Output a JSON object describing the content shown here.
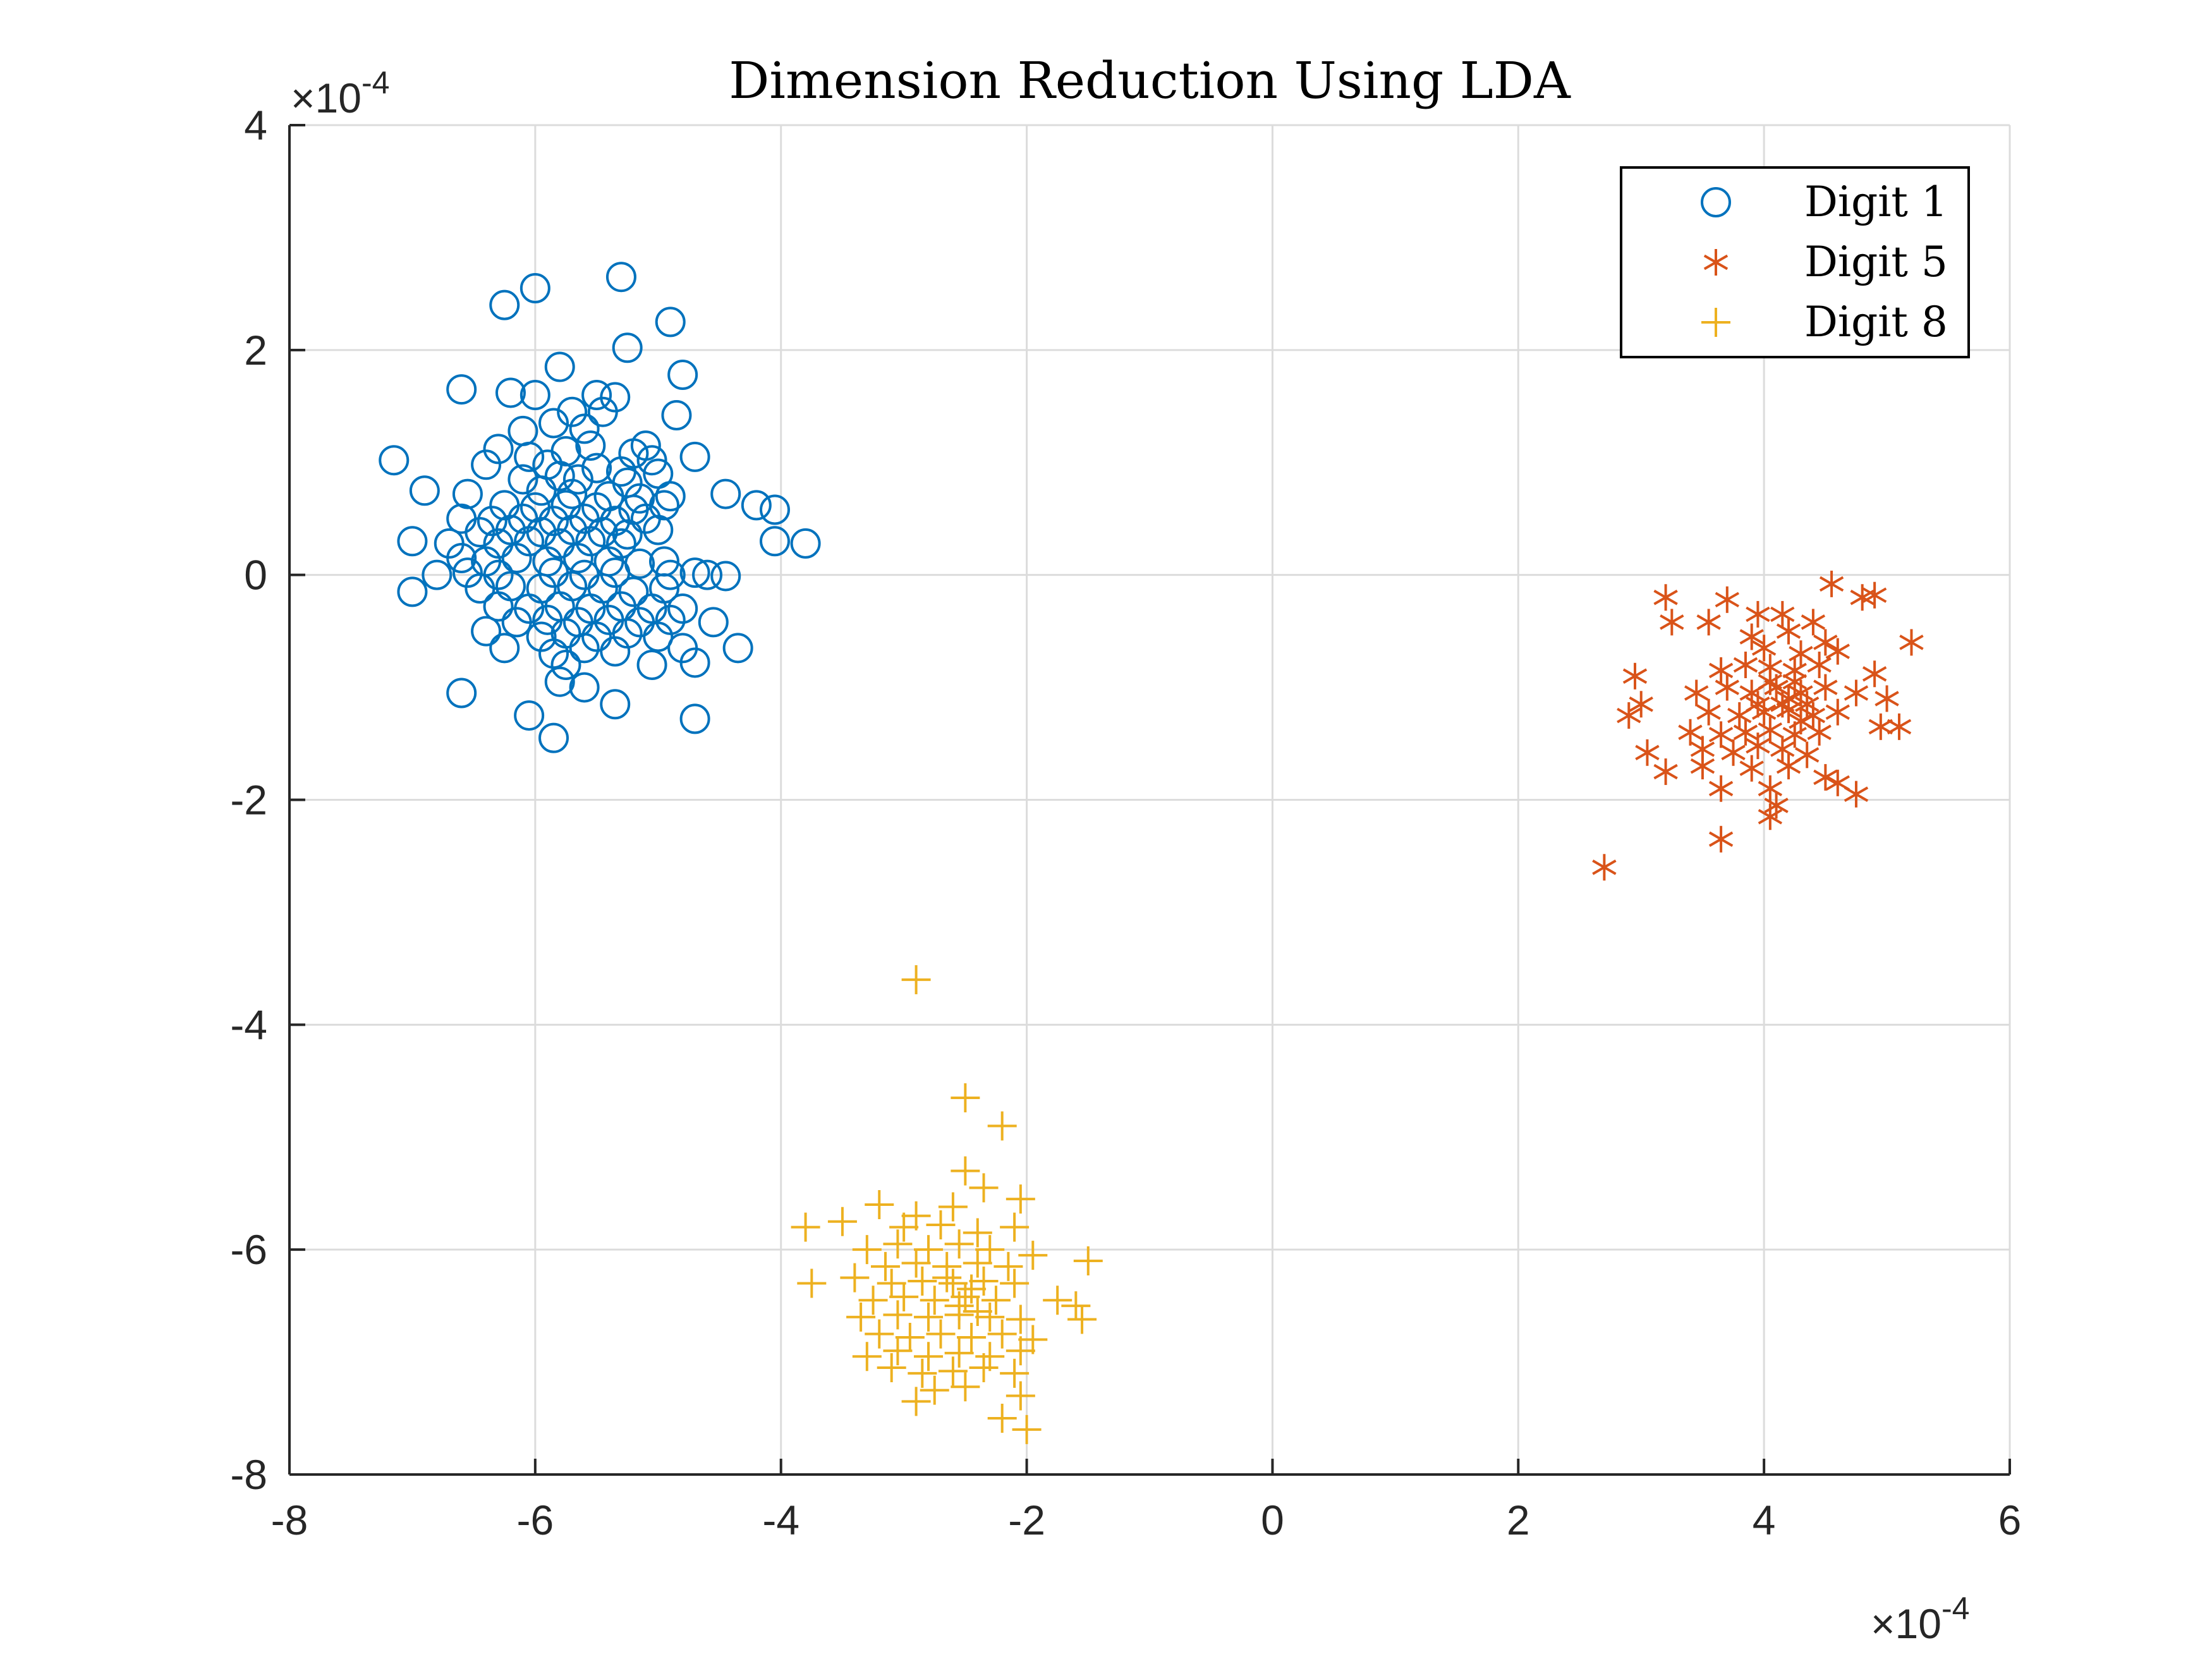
{
  "chart_data": {
    "type": "scatter",
    "title": "Dimension Reduction Using LDA",
    "xlabel": "",
    "ylabel": "",
    "x_exponent_label": "×10",
    "x_exponent_power": "-4",
    "y_exponent_label": "×10",
    "y_exponent_power": "-4",
    "xlim": [
      -8,
      6
    ],
    "ylim": [
      -8,
      4
    ],
    "x_ticks": [
      "-8",
      "-6",
      "-4",
      "-2",
      "0",
      "2",
      "4",
      "6"
    ],
    "y_ticks": [
      "4",
      "2",
      "0",
      "-2",
      "-4",
      "-6",
      "-8"
    ],
    "grid": true,
    "legend_position": "top-right",
    "series": [
      {
        "name": "Digit 1",
        "marker": "circle",
        "color": "#0072BD",
        "points": [
          [
            -6.25,
            2.4
          ],
          [
            -6.0,
            2.55
          ],
          [
            -5.3,
            2.65
          ],
          [
            -4.9,
            2.25
          ],
          [
            -5.25,
            2.02
          ],
          [
            -5.8,
            1.85
          ],
          [
            -4.8,
            1.78
          ],
          [
            -6.6,
            1.65
          ],
          [
            -6.2,
            1.62
          ],
          [
            -6.0,
            1.6
          ],
          [
            -5.5,
            1.6
          ],
          [
            -5.35,
            1.58
          ],
          [
            -5.45,
            1.45
          ],
          [
            -4.85,
            1.42
          ],
          [
            -5.7,
            1.45
          ],
          [
            -5.85,
            1.35
          ],
          [
            -6.1,
            1.28
          ],
          [
            -5.6,
            1.3
          ],
          [
            -5.1,
            1.15
          ],
          [
            -6.3,
            1.12
          ],
          [
            -7.15,
            1.02
          ],
          [
            -6.05,
            1.05
          ],
          [
            -5.75,
            1.1
          ],
          [
            -5.55,
            1.15
          ],
          [
            -5.2,
            1.08
          ],
          [
            -4.7,
            1.05
          ],
          [
            -5.05,
            1.02
          ],
          [
            -6.4,
            0.98
          ],
          [
            -5.9,
            0.98
          ],
          [
            -5.5,
            0.95
          ],
          [
            -5.3,
            0.92
          ],
          [
            -5.0,
            0.9
          ],
          [
            -5.8,
            0.88
          ],
          [
            -6.1,
            0.85
          ],
          [
            -5.65,
            0.85
          ],
          [
            -5.25,
            0.82
          ],
          [
            -6.9,
            0.75
          ],
          [
            -6.55,
            0.72
          ],
          [
            -5.95,
            0.75
          ],
          [
            -5.7,
            0.72
          ],
          [
            -5.4,
            0.7
          ],
          [
            -5.15,
            0.68
          ],
          [
            -4.9,
            0.7
          ],
          [
            -4.45,
            0.72
          ],
          [
            -6.25,
            0.62
          ],
          [
            -6.0,
            0.6
          ],
          [
            -5.75,
            0.62
          ],
          [
            -5.5,
            0.6
          ],
          [
            -5.2,
            0.58
          ],
          [
            -4.95,
            0.62
          ],
          [
            -4.2,
            0.62
          ],
          [
            -4.05,
            0.58
          ],
          [
            -6.6,
            0.5
          ],
          [
            -6.35,
            0.48
          ],
          [
            -6.1,
            0.5
          ],
          [
            -5.85,
            0.48
          ],
          [
            -5.6,
            0.5
          ],
          [
            -5.35,
            0.48
          ],
          [
            -5.1,
            0.5
          ],
          [
            -6.45,
            0.38
          ],
          [
            -6.2,
            0.4
          ],
          [
            -5.95,
            0.38
          ],
          [
            -5.7,
            0.4
          ],
          [
            -5.45,
            0.38
          ],
          [
            -5.25,
            0.36
          ],
          [
            -5.0,
            0.4
          ],
          [
            -7.0,
            0.3
          ],
          [
            -6.7,
            0.28
          ],
          [
            -6.3,
            0.28
          ],
          [
            -6.05,
            0.3
          ],
          [
            -5.8,
            0.28
          ],
          [
            -5.55,
            0.3
          ],
          [
            -5.3,
            0.28
          ],
          [
            -4.05,
            0.3
          ],
          [
            -3.8,
            0.28
          ],
          [
            -6.6,
            0.15
          ],
          [
            -6.4,
            0.12
          ],
          [
            -6.15,
            0.15
          ],
          [
            -5.9,
            0.12
          ],
          [
            -5.65,
            0.15
          ],
          [
            -5.4,
            0.12
          ],
          [
            -5.15,
            0.1
          ],
          [
            -4.95,
            0.12
          ],
          [
            -6.8,
            0.0
          ],
          [
            -6.55,
            0.02
          ],
          [
            -6.3,
            0.0
          ],
          [
            -5.85,
            0.02
          ],
          [
            -5.6,
            0.0
          ],
          [
            -5.35,
            0.02
          ],
          [
            -4.9,
            0.0
          ],
          [
            -4.7,
            0.02
          ],
          [
            -4.45,
            -0.01
          ],
          [
            -4.6,
            0.0
          ],
          [
            -7.0,
            -0.15
          ],
          [
            -6.45,
            -0.12
          ],
          [
            -6.2,
            -0.1
          ],
          [
            -5.95,
            -0.12
          ],
          [
            -5.7,
            -0.1
          ],
          [
            -5.45,
            -0.12
          ],
          [
            -5.2,
            -0.15
          ],
          [
            -4.95,
            -0.12
          ],
          [
            -6.3,
            -0.28
          ],
          [
            -6.05,
            -0.3
          ],
          [
            -5.8,
            -0.28
          ],
          [
            -5.55,
            -0.3
          ],
          [
            -5.3,
            -0.28
          ],
          [
            -5.05,
            -0.3
          ],
          [
            -4.8,
            -0.3
          ],
          [
            -6.15,
            -0.42
          ],
          [
            -5.9,
            -0.4
          ],
          [
            -5.65,
            -0.42
          ],
          [
            -5.4,
            -0.4
          ],
          [
            -5.15,
            -0.42
          ],
          [
            -4.9,
            -0.4
          ],
          [
            -4.55,
            -0.42
          ],
          [
            -6.4,
            -0.5
          ],
          [
            -5.95,
            -0.55
          ],
          [
            -5.75,
            -0.52
          ],
          [
            -5.5,
            -0.55
          ],
          [
            -5.25,
            -0.52
          ],
          [
            -5.0,
            -0.55
          ],
          [
            -6.25,
            -0.65
          ],
          [
            -5.85,
            -0.7
          ],
          [
            -5.6,
            -0.65
          ],
          [
            -5.35,
            -0.68
          ],
          [
            -4.8,
            -0.65
          ],
          [
            -4.35,
            -0.65
          ],
          [
            -5.75,
            -0.8
          ],
          [
            -5.05,
            -0.8
          ],
          [
            -4.7,
            -0.78
          ],
          [
            -5.8,
            -0.95
          ],
          [
            -5.6,
            -1.0
          ],
          [
            -6.6,
            -1.05
          ],
          [
            -6.05,
            -1.25
          ],
          [
            -5.35,
            -1.15
          ],
          [
            -4.7,
            -1.28
          ],
          [
            -5.85,
            -1.45
          ]
        ]
      },
      {
        "name": "Digit 5",
        "marker": "asterisk",
        "color": "#D95319",
        "points": [
          [
            4.55,
            -0.08
          ],
          [
            4.9,
            -0.18
          ],
          [
            4.8,
            -0.2
          ],
          [
            3.2,
            -0.2
          ],
          [
            3.7,
            -0.22
          ],
          [
            3.55,
            -0.42
          ],
          [
            3.25,
            -0.42
          ],
          [
            3.95,
            -0.35
          ],
          [
            4.15,
            -0.35
          ],
          [
            4.4,
            -0.42
          ],
          [
            3.9,
            -0.55
          ],
          [
            4.2,
            -0.5
          ],
          [
            4.5,
            -0.6
          ],
          [
            4.0,
            -0.65
          ],
          [
            4.3,
            -0.7
          ],
          [
            4.6,
            -0.68
          ],
          [
            5.2,
            -0.6
          ],
          [
            2.95,
            -0.9
          ],
          [
            3.65,
            -0.85
          ],
          [
            3.85,
            -0.8
          ],
          [
            4.05,
            -0.82
          ],
          [
            4.25,
            -0.85
          ],
          [
            4.45,
            -0.8
          ],
          [
            4.9,
            -0.88
          ],
          [
            3.0,
            -1.15
          ],
          [
            3.45,
            -1.05
          ],
          [
            3.7,
            -1.0
          ],
          [
            3.9,
            -1.05
          ],
          [
            4.1,
            -1.0
          ],
          [
            4.3,
            -1.05
          ],
          [
            4.5,
            -1.0
          ],
          [
            4.75,
            -1.05
          ],
          [
            5.0,
            -1.1
          ],
          [
            2.9,
            -1.25
          ],
          [
            3.55,
            -1.22
          ],
          [
            3.8,
            -1.25
          ],
          [
            4.0,
            -1.22
          ],
          [
            4.2,
            -1.2
          ],
          [
            4.4,
            -1.25
          ],
          [
            4.6,
            -1.22
          ],
          [
            3.4,
            -1.4
          ],
          [
            3.65,
            -1.42
          ],
          [
            3.85,
            -1.4
          ],
          [
            4.05,
            -1.38
          ],
          [
            4.25,
            -1.42
          ],
          [
            4.45,
            -1.4
          ],
          [
            4.95,
            -1.35
          ],
          [
            5.1,
            -1.35
          ],
          [
            3.05,
            -1.58
          ],
          [
            3.5,
            -1.55
          ],
          [
            3.75,
            -1.58
          ],
          [
            3.95,
            -1.52
          ],
          [
            4.15,
            -1.55
          ],
          [
            4.35,
            -1.6
          ],
          [
            3.2,
            -1.75
          ],
          [
            3.5,
            -1.7
          ],
          [
            3.9,
            -1.72
          ],
          [
            4.2,
            -1.7
          ],
          [
            4.5,
            -1.8
          ],
          [
            3.65,
            -1.9
          ],
          [
            4.05,
            -1.9
          ],
          [
            4.6,
            -1.85
          ],
          [
            4.75,
            -1.95
          ],
          [
            4.1,
            -2.05
          ],
          [
            4.05,
            -2.15
          ],
          [
            3.65,
            -2.35
          ],
          [
            2.7,
            -2.6
          ],
          [
            4.2,
            -1.1
          ],
          [
            4.15,
            -1.15
          ],
          [
            4.25,
            -0.95
          ],
          [
            4.35,
            -1.15
          ],
          [
            4.05,
            -0.95
          ],
          [
            4.3,
            -1.3
          ],
          [
            3.95,
            -1.15
          ]
        ]
      },
      {
        "name": "Digit 8",
        "marker": "plus",
        "color": "#EDB120",
        "points": [
          [
            -2.9,
            -3.6
          ],
          [
            -2.5,
            -4.65
          ],
          [
            -2.2,
            -4.9
          ],
          [
            -2.5,
            -5.3
          ],
          [
            -2.35,
            -5.45
          ],
          [
            -2.05,
            -5.55
          ],
          [
            -3.2,
            -5.6
          ],
          [
            -2.9,
            -5.7
          ],
          [
            -2.6,
            -5.62
          ],
          [
            -3.8,
            -5.8
          ],
          [
            -3.5,
            -5.75
          ],
          [
            -3.0,
            -5.8
          ],
          [
            -2.7,
            -5.78
          ],
          [
            -2.4,
            -5.85
          ],
          [
            -2.1,
            -5.8
          ],
          [
            -3.3,
            -6.0
          ],
          [
            -3.05,
            -5.95
          ],
          [
            -2.8,
            -6.0
          ],
          [
            -2.55,
            -5.95
          ],
          [
            -2.3,
            -6.0
          ],
          [
            -1.95,
            -6.05
          ],
          [
            -1.5,
            -6.1
          ],
          [
            -3.15,
            -6.15
          ],
          [
            -2.9,
            -6.12
          ],
          [
            -2.65,
            -6.15
          ],
          [
            -2.4,
            -6.12
          ],
          [
            -2.15,
            -6.15
          ],
          [
            -3.75,
            -6.3
          ],
          [
            -3.4,
            -6.25
          ],
          [
            -3.1,
            -6.3
          ],
          [
            -2.85,
            -6.28
          ],
          [
            -2.6,
            -6.3
          ],
          [
            -2.35,
            -6.28
          ],
          [
            -2.1,
            -6.3
          ],
          [
            -3.25,
            -6.45
          ],
          [
            -3.0,
            -6.42
          ],
          [
            -2.75,
            -6.45
          ],
          [
            -2.5,
            -6.42
          ],
          [
            -2.25,
            -6.45
          ],
          [
            -1.75,
            -6.45
          ],
          [
            -1.6,
            -6.5
          ],
          [
            -3.35,
            -6.6
          ],
          [
            -3.05,
            -6.58
          ],
          [
            -2.8,
            -6.6
          ],
          [
            -2.55,
            -6.58
          ],
          [
            -2.3,
            -6.6
          ],
          [
            -2.05,
            -6.62
          ],
          [
            -1.55,
            -6.62
          ],
          [
            -3.2,
            -6.75
          ],
          [
            -2.95,
            -6.78
          ],
          [
            -2.7,
            -6.75
          ],
          [
            -2.45,
            -6.78
          ],
          [
            -2.2,
            -6.75
          ],
          [
            -1.95,
            -6.8
          ],
          [
            -3.3,
            -6.95
          ],
          [
            -3.05,
            -6.9
          ],
          [
            -2.8,
            -6.95
          ],
          [
            -2.55,
            -6.92
          ],
          [
            -2.3,
            -6.95
          ],
          [
            -2.05,
            -6.9
          ],
          [
            -3.1,
            -7.05
          ],
          [
            -2.85,
            -7.1
          ],
          [
            -2.6,
            -7.08
          ],
          [
            -2.35,
            -7.05
          ],
          [
            -2.1,
            -7.1
          ],
          [
            -2.75,
            -7.25
          ],
          [
            -2.5,
            -7.22
          ],
          [
            -2.05,
            -7.3
          ],
          [
            -2.9,
            -7.35
          ],
          [
            -2.2,
            -7.5
          ],
          [
            -2.0,
            -7.6
          ],
          [
            -2.45,
            -6.35
          ],
          [
            -2.55,
            -6.5
          ],
          [
            -2.65,
            -6.25
          ],
          [
            -2.4,
            -6.55
          ]
        ]
      }
    ]
  }
}
